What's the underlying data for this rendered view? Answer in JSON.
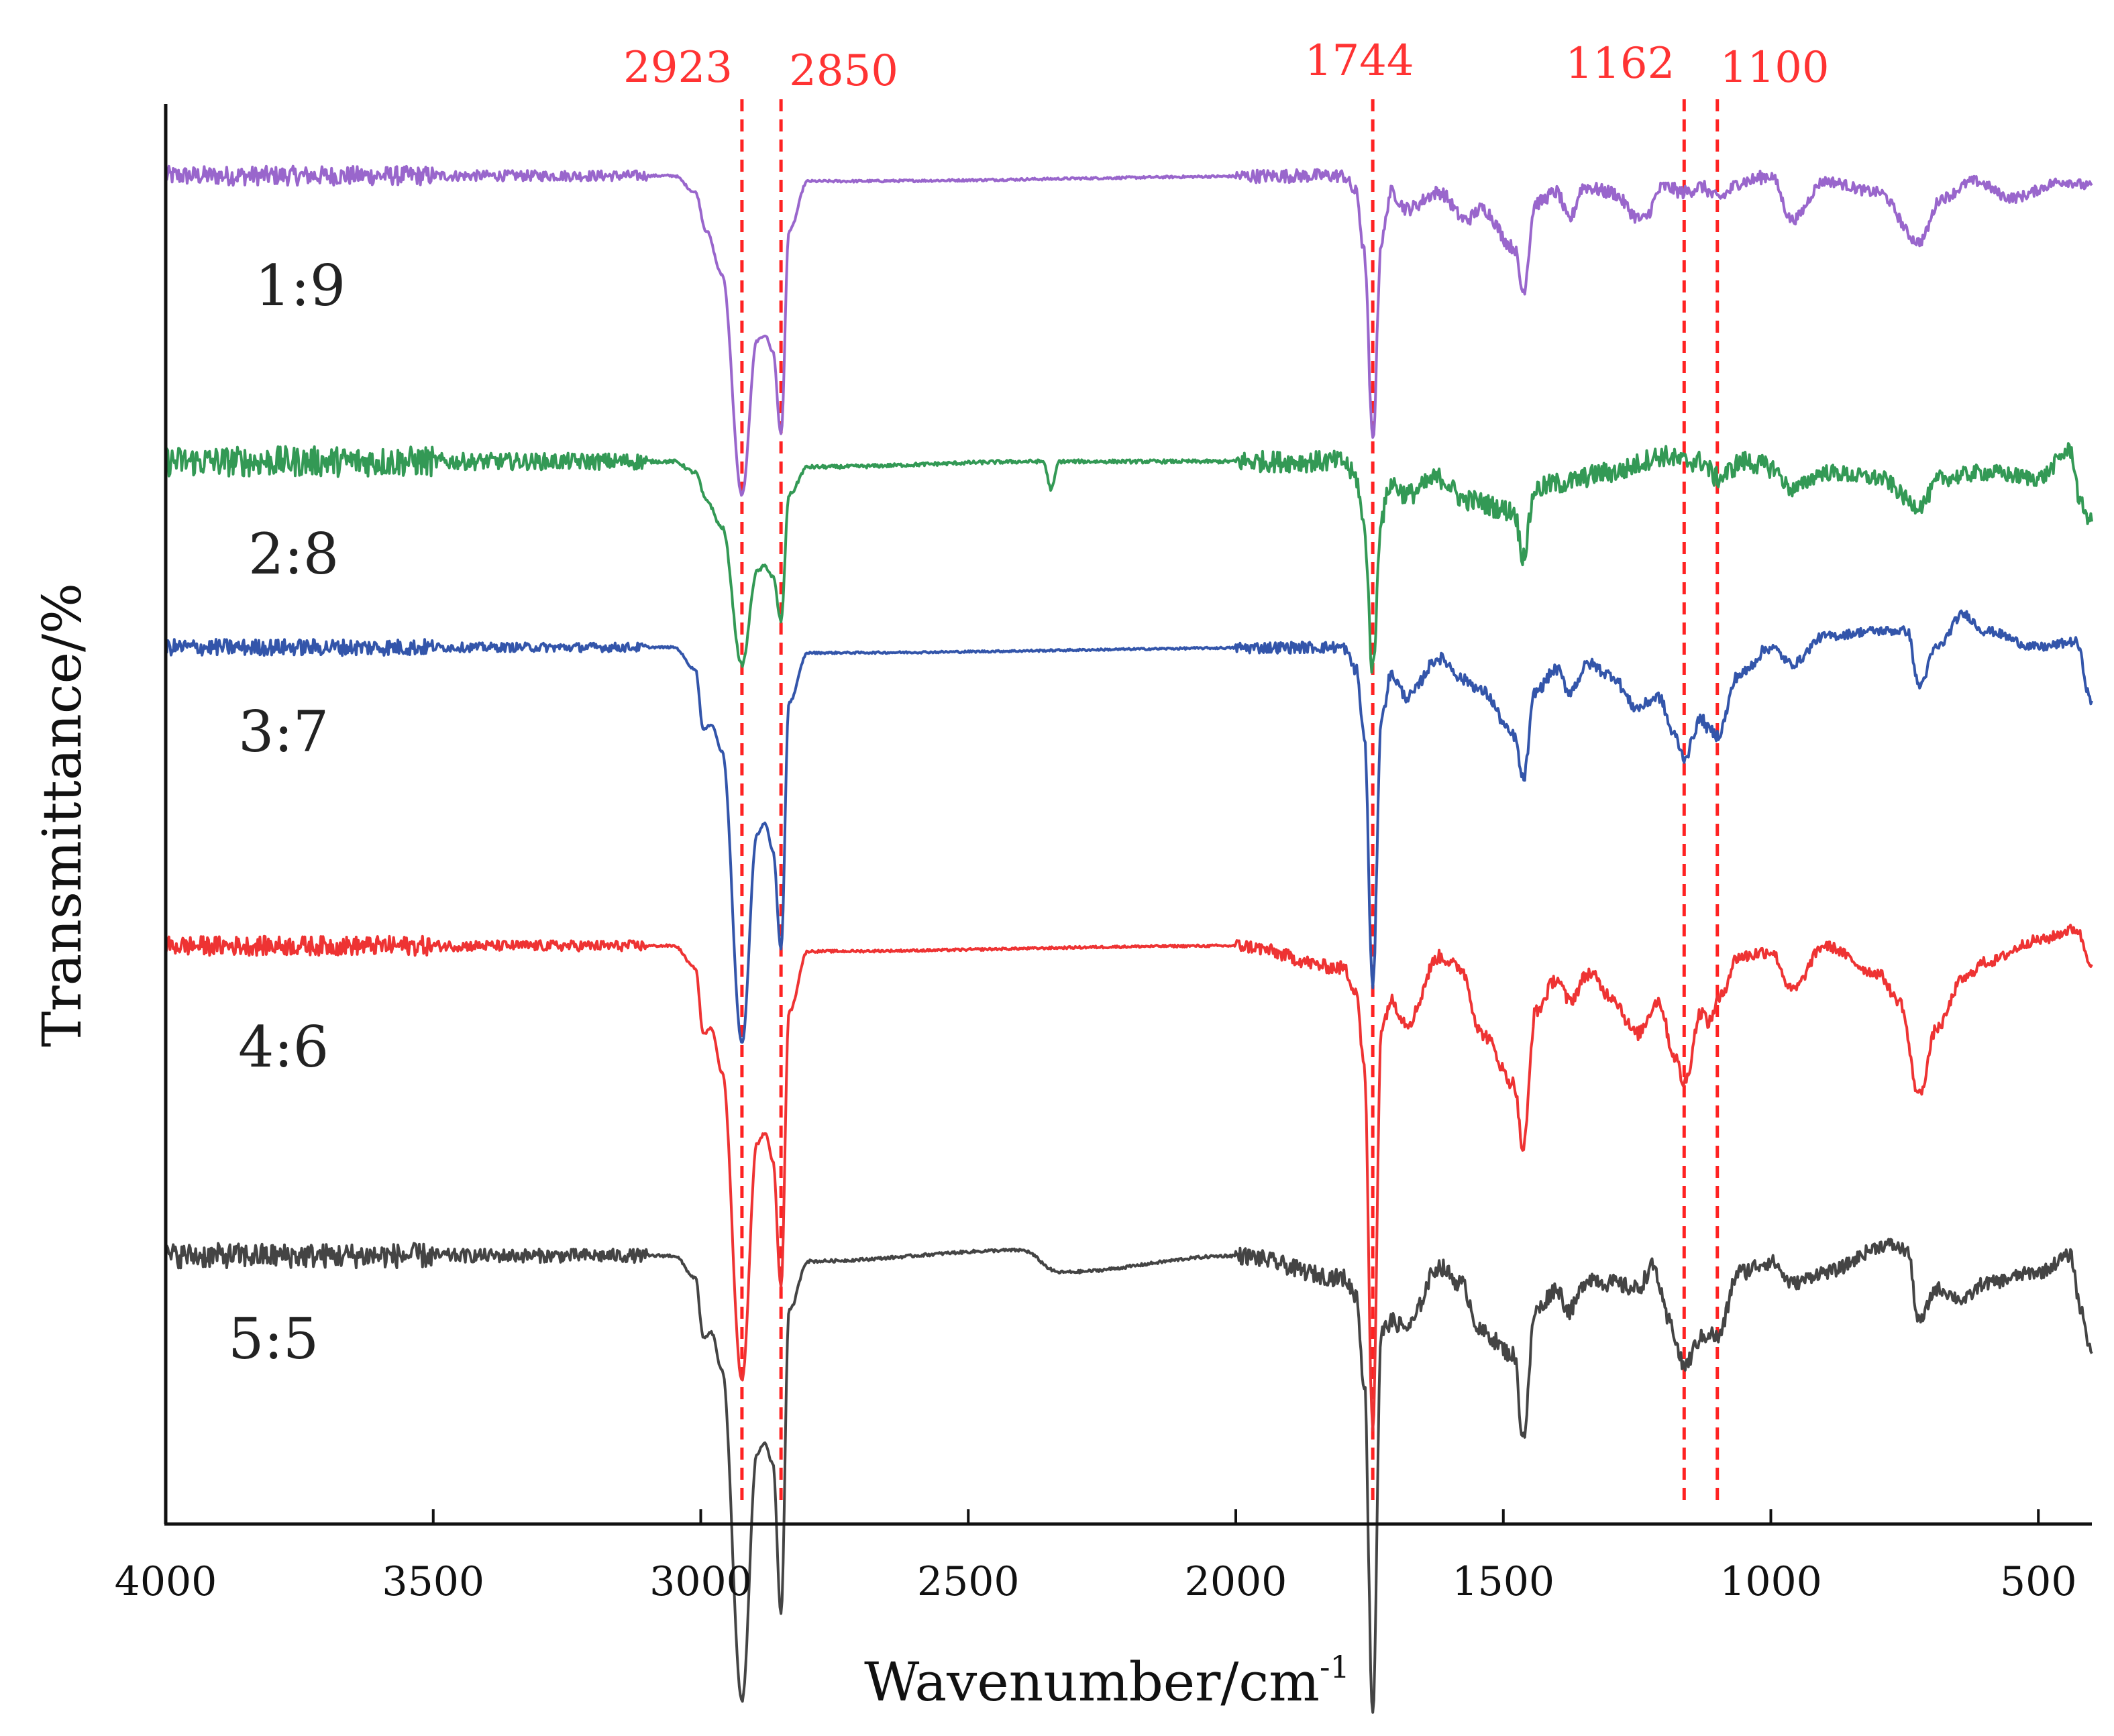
{
  "chart_data": {
    "type": "line",
    "xlabel": "Wavenumber/cm",
    "xlabel_superscript": "-1",
    "ylabel": "Transmittance/%",
    "xlim": [
      4000,
      400
    ],
    "x_reversed": true,
    "xticks": [
      4000,
      3500,
      3000,
      2500,
      2000,
      1500,
      1000,
      500
    ],
    "grid": false,
    "peak_lines": [
      {
        "x": 2923,
        "label": "2923"
      },
      {
        "x": 2850,
        "label": "2850"
      },
      {
        "x": 1744,
        "label": "1744"
      },
      {
        "x": 1162,
        "label": "1162"
      },
      {
        "x": 1100,
        "label": "1100"
      }
    ],
    "peak_line_color": "#ff2222",
    "series": [
      {
        "name": "1:9",
        "color": "#9966cc",
        "noise": 0.35,
        "points": [
          [
            4000,
            0
          ],
          [
            3050,
            0
          ],
          [
            3010,
            -0.3
          ],
          [
            2990,
            -1.0
          ],
          [
            2960,
            -1.8
          ],
          [
            2923,
            -5.8
          ],
          [
            2895,
            -3.0
          ],
          [
            2880,
            -2.9
          ],
          [
            2865,
            -3.2
          ],
          [
            2850,
            -4.7
          ],
          [
            2835,
            -1.0
          ],
          [
            2800,
            -0.1
          ],
          [
            1800,
            0
          ],
          [
            1775,
            -0.3
          ],
          [
            1760,
            -1.4
          ],
          [
            1744,
            -4.8
          ],
          [
            1728,
            -1.2
          ],
          [
            1710,
            -0.3
          ],
          [
            1680,
            -0.6
          ],
          [
            1620,
            -0.3
          ],
          [
            1570,
            -0.8
          ],
          [
            1540,
            -0.6
          ],
          [
            1480,
            -1.3
          ],
          [
            1463,
            -2.1
          ],
          [
            1440,
            -0.5
          ],
          [
            1400,
            -0.3
          ],
          [
            1377,
            -0.8
          ],
          [
            1350,
            -0.2
          ],
          [
            1300,
            -0.3
          ],
          [
            1240,
            -0.8
          ],
          [
            1200,
            -0.2
          ],
          [
            1162,
            -0.3
          ],
          [
            1130,
            -0.2
          ],
          [
            1100,
            -0.4
          ],
          [
            1050,
            -0.1
          ],
          [
            1000,
            0
          ],
          [
            960,
            -0.8
          ],
          [
            900,
            -0.1
          ],
          [
            800,
            -0.3
          ],
          [
            723,
            -1.2
          ],
          [
            680,
            -0.4
          ],
          [
            620,
            -0.1
          ],
          [
            550,
            -0.4
          ],
          [
            450,
            -0.1
          ],
          [
            400,
            -0.2
          ]
        ]
      },
      {
        "name": "2:8",
        "color": "#339955",
        "noise": 0.55,
        "points": [
          [
            4000,
            0
          ],
          [
            3050,
            0
          ],
          [
            3010,
            -0.2
          ],
          [
            2990,
            -0.7
          ],
          [
            2960,
            -1.2
          ],
          [
            2923,
            -3.7
          ],
          [
            2895,
            -2.0
          ],
          [
            2880,
            -1.9
          ],
          [
            2865,
            -2.1
          ],
          [
            2850,
            -2.9
          ],
          [
            2835,
            -0.6
          ],
          [
            2800,
            -0.1
          ],
          [
            2360,
            0
          ],
          [
            2345,
            -0.5
          ],
          [
            2330,
            0
          ],
          [
            1800,
            0
          ],
          [
            1775,
            -0.3
          ],
          [
            1760,
            -1.2
          ],
          [
            1744,
            -3.8
          ],
          [
            1728,
            -1.0
          ],
          [
            1710,
            -0.4
          ],
          [
            1680,
            -0.6
          ],
          [
            1620,
            -0.3
          ],
          [
            1570,
            -0.7
          ],
          [
            1480,
            -0.9
          ],
          [
            1463,
            -1.7
          ],
          [
            1440,
            -0.5
          ],
          [
            1400,
            -0.4
          ],
          [
            1300,
            -0.2
          ],
          [
            1200,
            0.1
          ],
          [
            1162,
            0
          ],
          [
            1130,
            0
          ],
          [
            1100,
            -0.3
          ],
          [
            1050,
            0
          ],
          [
            1000,
            -0.1
          ],
          [
            960,
            -0.5
          ],
          [
            900,
            -0.2
          ],
          [
            800,
            -0.3
          ],
          [
            723,
            -0.8
          ],
          [
            680,
            -0.3
          ],
          [
            600,
            -0.2
          ],
          [
            500,
            -0.3
          ],
          [
            440,
            0.2
          ],
          [
            420,
            -0.8
          ],
          [
            400,
            -1.1
          ]
        ]
      },
      {
        "name": "3:7",
        "color": "#3355aa",
        "noise": 0.3,
        "points": [
          [
            4000,
            0
          ],
          [
            3050,
            0
          ],
          [
            3010,
            -0.4
          ],
          [
            2995,
            -1.5
          ],
          [
            2980,
            -1.4
          ],
          [
            2960,
            -1.9
          ],
          [
            2923,
            -7.2
          ],
          [
            2895,
            -3.4
          ],
          [
            2880,
            -3.2
          ],
          [
            2865,
            -3.7
          ],
          [
            2850,
            -5.5
          ],
          [
            2835,
            -1.0
          ],
          [
            2800,
            -0.1
          ],
          [
            1800,
            0
          ],
          [
            1775,
            -0.4
          ],
          [
            1760,
            -1.6
          ],
          [
            1744,
            -6.2
          ],
          [
            1728,
            -1.3
          ],
          [
            1710,
            -0.5
          ],
          [
            1680,
            -0.9
          ],
          [
            1620,
            -0.2
          ],
          [
            1570,
            -0.6
          ],
          [
            1540,
            -0.8
          ],
          [
            1480,
            -1.6
          ],
          [
            1463,
            -2.4
          ],
          [
            1440,
            -0.8
          ],
          [
            1400,
            -0.4
          ],
          [
            1377,
            -0.8
          ],
          [
            1340,
            -0.3
          ],
          [
            1300,
            -0.5
          ],
          [
            1250,
            -1.1
          ],
          [
            1210,
            -0.9
          ],
          [
            1180,
            -1.6
          ],
          [
            1162,
            -2.0
          ],
          [
            1130,
            -1.3
          ],
          [
            1115,
            -1.5
          ],
          [
            1100,
            -1.6
          ],
          [
            1060,
            -0.5
          ],
          [
            1000,
            0
          ],
          [
            960,
            -0.3
          ],
          [
            900,
            0.2
          ],
          [
            800,
            0.3
          ],
          [
            745,
            0.3
          ],
          [
            723,
            -0.7
          ],
          [
            690,
            0
          ],
          [
            640,
            0.6
          ],
          [
            600,
            0.3
          ],
          [
            500,
            0
          ],
          [
            430,
            0.1
          ],
          [
            400,
            -1.0
          ]
        ]
      },
      {
        "name": "4:6",
        "color": "#ee3333",
        "noise": 0.35,
        "points": [
          [
            4000,
            0
          ],
          [
            3050,
            0
          ],
          [
            3010,
            -0.4
          ],
          [
            2995,
            -1.6
          ],
          [
            2980,
            -1.5
          ],
          [
            2960,
            -2.3
          ],
          [
            2923,
            -7.9
          ],
          [
            2895,
            -3.6
          ],
          [
            2880,
            -3.4
          ],
          [
            2865,
            -3.9
          ],
          [
            2850,
            -6.2
          ],
          [
            2835,
            -1.2
          ],
          [
            2800,
            -0.1
          ],
          [
            2000,
            0
          ],
          [
            1800,
            -0.4
          ],
          [
            1775,
            -0.8
          ],
          [
            1760,
            -2.2
          ],
          [
            1744,
            -8.8
          ],
          [
            1728,
            -1.5
          ],
          [
            1710,
            -1.0
          ],
          [
            1680,
            -1.4
          ],
          [
            1620,
            -0.2
          ],
          [
            1580,
            -0.4
          ],
          [
            1540,
            -1.6
          ],
          [
            1480,
            -2.5
          ],
          [
            1463,
            -3.7
          ],
          [
            1440,
            -1.2
          ],
          [
            1400,
            -0.6
          ],
          [
            1377,
            -1.0
          ],
          [
            1340,
            -0.5
          ],
          [
            1300,
            -0.9
          ],
          [
            1250,
            -1.6
          ],
          [
            1210,
            -1.0
          ],
          [
            1180,
            -2.0
          ],
          [
            1162,
            -2.5
          ],
          [
            1130,
            -1.2
          ],
          [
            1115,
            -1.4
          ],
          [
            1100,
            -1.0
          ],
          [
            1060,
            -0.2
          ],
          [
            1000,
            -0.1
          ],
          [
            960,
            -0.8
          ],
          [
            900,
            0
          ],
          [
            800,
            -0.5
          ],
          [
            760,
            -1.0
          ],
          [
            723,
            -2.7
          ],
          [
            690,
            -1.5
          ],
          [
            640,
            -0.6
          ],
          [
            600,
            -0.3
          ],
          [
            500,
            0.1
          ],
          [
            430,
            0.3
          ],
          [
            400,
            -0.3
          ]
        ]
      },
      {
        "name": "5:5",
        "color": "#444444",
        "noise": 0.45,
        "points": [
          [
            4000,
            0
          ],
          [
            3050,
            0
          ],
          [
            3010,
            -0.4
          ],
          [
            2995,
            -1.5
          ],
          [
            2980,
            -1.4
          ],
          [
            2960,
            -2.1
          ],
          [
            2923,
            -8.1
          ],
          [
            2895,
            -3.6
          ],
          [
            2880,
            -3.4
          ],
          [
            2865,
            -3.8
          ],
          [
            2850,
            -6.5
          ],
          [
            2835,
            -1.0
          ],
          [
            2800,
            -0.1
          ],
          [
            2400,
            0.1
          ],
          [
            2330,
            -0.3
          ],
          [
            2000,
            0
          ],
          [
            1800,
            -0.4
          ],
          [
            1775,
            -0.7
          ],
          [
            1760,
            -2.3
          ],
          [
            1744,
            -8.3
          ],
          [
            1728,
            -1.4
          ],
          [
            1710,
            -1.2
          ],
          [
            1680,
            -1.3
          ],
          [
            1620,
            -0.2
          ],
          [
            1580,
            -0.5
          ],
          [
            1540,
            -1.4
          ],
          [
            1480,
            -1.8
          ],
          [
            1463,
            -3.3
          ],
          [
            1440,
            -1.0
          ],
          [
            1400,
            -0.6
          ],
          [
            1377,
            -1.0
          ],
          [
            1340,
            -0.4
          ],
          [
            1300,
            -0.5
          ],
          [
            1250,
            -0.6
          ],
          [
            1220,
            -0.2
          ],
          [
            1190,
            -1.2
          ],
          [
            1162,
            -2.0
          ],
          [
            1130,
            -1.5
          ],
          [
            1115,
            -1.4
          ],
          [
            1100,
            -1.5
          ],
          [
            1060,
            -0.3
          ],
          [
            1000,
            -0.1
          ],
          [
            960,
            -0.5
          ],
          [
            900,
            -0.3
          ],
          [
            780,
            0.2
          ],
          [
            745,
            0.1
          ],
          [
            723,
            -1.2
          ],
          [
            690,
            -0.6
          ],
          [
            640,
            -0.8
          ],
          [
            600,
            -0.5
          ],
          [
            500,
            -0.3
          ],
          [
            440,
            0
          ],
          [
            420,
            -1.0
          ],
          [
            400,
            -1.8
          ]
        ]
      }
    ]
  }
}
